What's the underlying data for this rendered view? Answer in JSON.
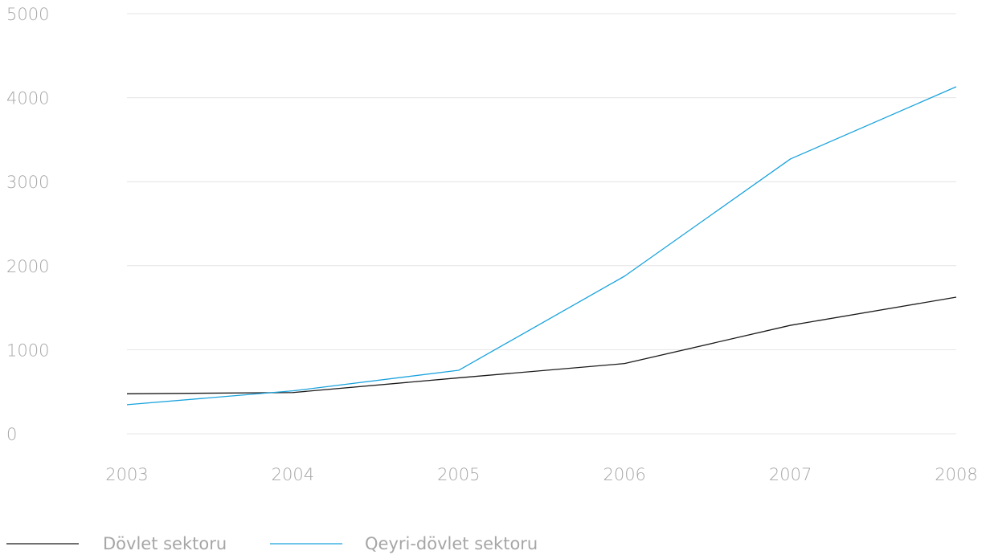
{
  "chart_data": {
    "type": "line",
    "x": [
      "2003",
      "2004",
      "2005",
      "2006",
      "2007",
      "2008"
    ],
    "ylim": [
      0,
      5000
    ],
    "yticks": [
      "0",
      "1000",
      "2000",
      "3000",
      "4000",
      "5000"
    ],
    "grid": true,
    "legend_position": "bottom-left",
    "series": [
      {
        "name": "Dövlet sektoru",
        "color": "#1a1a1a",
        "values": [
          475,
          490,
          665,
          835,
          1290,
          1625
        ]
      },
      {
        "name": "Qeyri-dövlet sektoru",
        "color": "#1aa3dd",
        "values": [
          345,
          510,
          755,
          1875,
          3270,
          4130
        ]
      }
    ]
  }
}
